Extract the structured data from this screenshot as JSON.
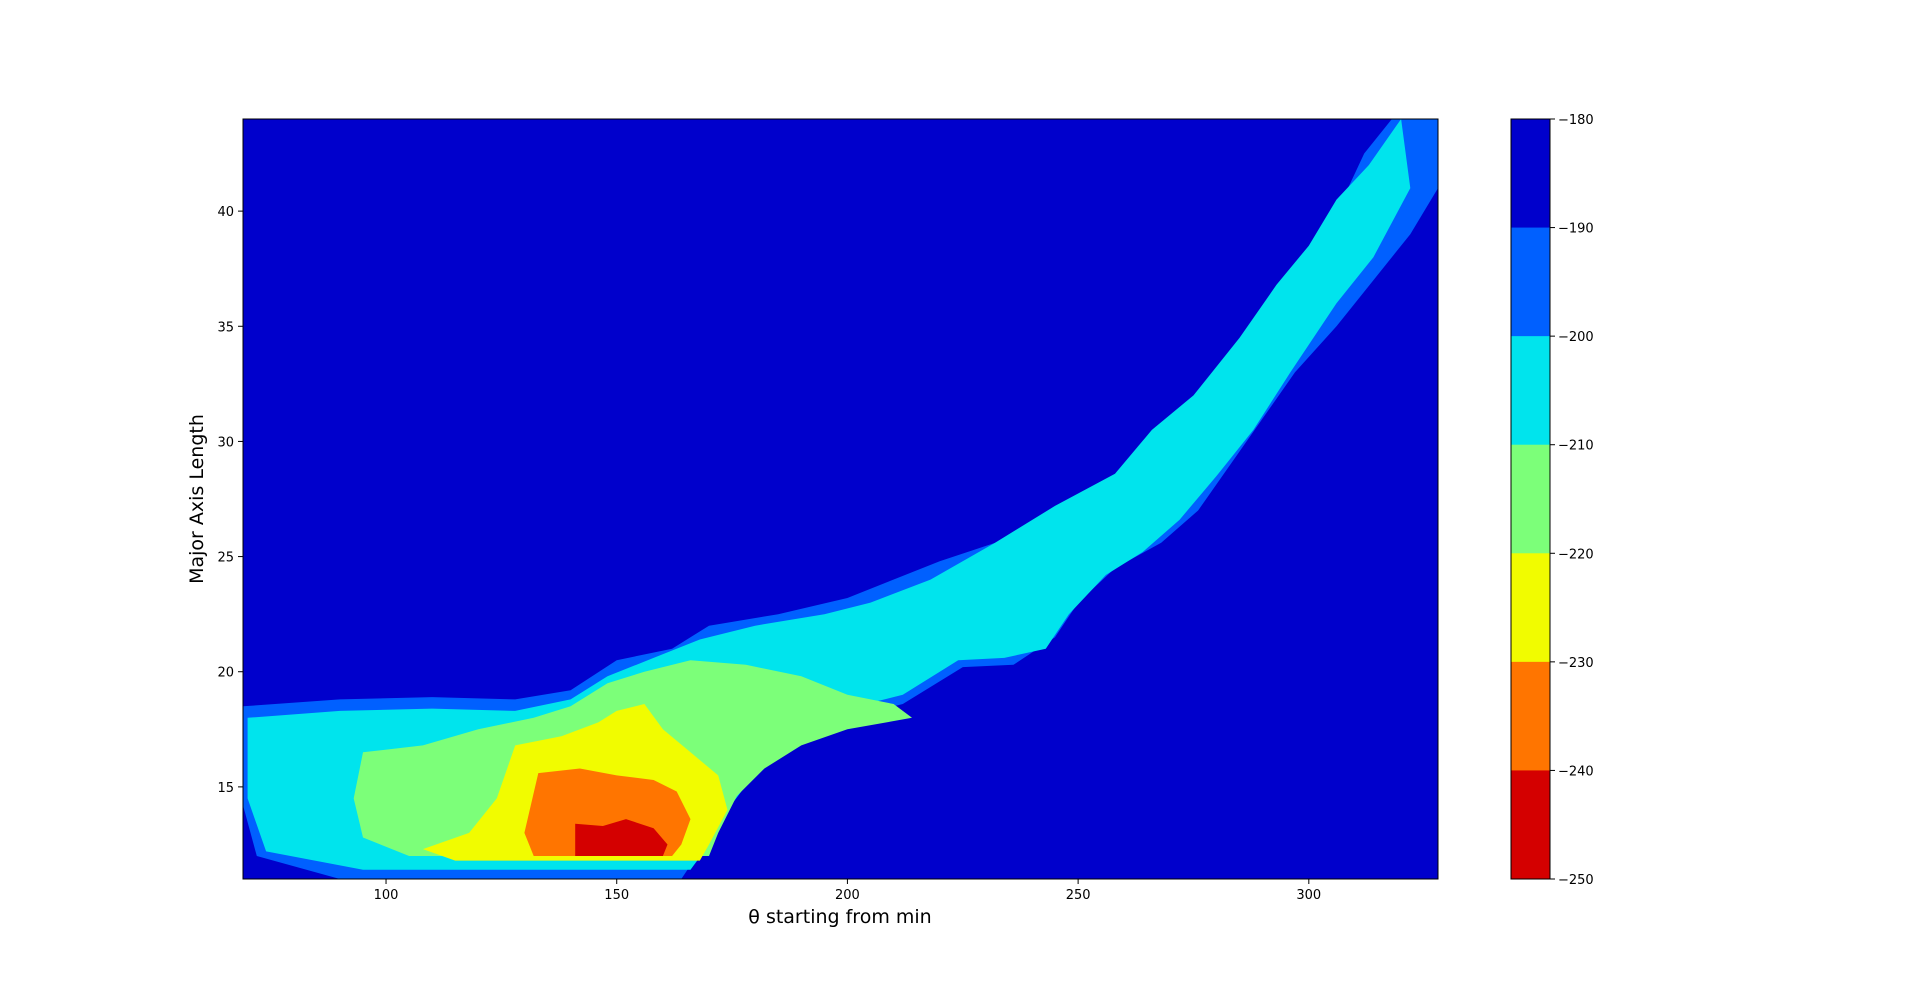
{
  "chart_data": {
    "type": "heatmap",
    "subtype": "filled-contour",
    "title": "",
    "xlabel": "θ starting from min",
    "ylabel": "Major Axis Length",
    "xlim": [
      69,
      328
    ],
    "ylim": [
      11,
      44
    ],
    "xticks": [
      100,
      150,
      200,
      250,
      300
    ],
    "yticks": [
      15,
      20,
      25,
      30,
      35,
      40
    ],
    "grid": false,
    "colorbar": {
      "position": "right",
      "ticks": [
        -180,
        -190,
        -200,
        -210,
        -220,
        -230,
        -240,
        -250
      ],
      "levels": [
        {
          "range": [
            -190,
            -180
          ],
          "color": "#0000cc"
        },
        {
          "range": [
            -200,
            -190
          ],
          "color": "#0060ff"
        },
        {
          "range": [
            -210,
            -200
          ],
          "color": "#00e4ed"
        },
        {
          "range": [
            -220,
            -210
          ],
          "color": "#7cff79"
        },
        {
          "range": [
            -230,
            -220
          ],
          "color": "#f1fc00"
        },
        {
          "range": [
            -240,
            -230
          ],
          "color": "#ff7500"
        },
        {
          "range": [
            -250,
            -240
          ],
          "color": "#d40000"
        }
      ]
    },
    "regions": [
      {
        "level": -190,
        "points": [
          [
            69,
            18.5
          ],
          [
            90,
            18.8
          ],
          [
            110,
            18.9
          ],
          [
            128,
            18.8
          ],
          [
            140,
            19.2
          ],
          [
            150,
            20.5
          ],
          [
            162,
            21
          ],
          [
            170,
            22
          ],
          [
            185,
            22.5
          ],
          [
            200,
            23.2
          ],
          [
            220,
            24.8
          ],
          [
            235,
            25.8
          ],
          [
            250,
            27.5
          ],
          [
            262,
            28.8
          ],
          [
            270,
            30
          ],
          [
            282,
            31.5
          ],
          [
            290,
            33.5
          ],
          [
            297,
            36
          ],
          [
            305,
            39.5
          ],
          [
            312,
            42.5
          ],
          [
            318,
            44
          ],
          [
            328,
            44
          ],
          [
            328,
            41
          ],
          [
            322,
            39
          ],
          [
            314,
            37
          ],
          [
            306,
            35
          ],
          [
            297,
            33
          ],
          [
            290,
            31
          ],
          [
            283,
            29
          ],
          [
            276,
            27
          ],
          [
            268,
            25.6
          ],
          [
            258,
            24.5
          ],
          [
            250,
            23
          ],
          [
            245,
            21.5
          ],
          [
            236,
            20.3
          ],
          [
            225,
            20.2
          ],
          [
            212,
            18.6
          ],
          [
            200,
            18
          ],
          [
            187,
            16.8
          ],
          [
            178,
            15.2
          ],
          [
            172,
            13.8
          ],
          [
            168,
            12.2
          ],
          [
            164,
            11
          ],
          [
            90,
            11
          ],
          [
            72,
            12
          ],
          [
            69,
            14.2
          ]
        ]
      },
      {
        "level": -200,
        "points": [
          [
            70,
            18
          ],
          [
            90,
            18.3
          ],
          [
            110,
            18.4
          ],
          [
            128,
            18.3
          ],
          [
            140,
            18.8
          ],
          [
            148,
            19.8
          ],
          [
            158,
            20.6
          ],
          [
            168,
            21.4
          ],
          [
            180,
            22
          ],
          [
            195,
            22.5
          ],
          [
            205,
            23
          ],
          [
            218,
            24
          ],
          [
            232,
            25.6
          ],
          [
            245,
            27.2
          ],
          [
            258,
            28.6
          ],
          [
            266,
            30.5
          ],
          [
            275,
            32
          ],
          [
            285,
            34.5
          ],
          [
            293,
            36.8
          ],
          [
            300,
            38.5
          ],
          [
            306,
            40.5
          ],
          [
            313,
            42
          ],
          [
            320,
            44
          ],
          [
            322,
            41
          ],
          [
            314,
            38
          ],
          [
            306,
            36
          ],
          [
            296,
            33
          ],
          [
            288,
            30.5
          ],
          [
            280,
            28.5
          ],
          [
            272,
            26.6
          ],
          [
            264,
            25.2
          ],
          [
            256,
            24.2
          ],
          [
            248,
            22.5
          ],
          [
            243,
            21
          ],
          [
            234,
            20.6
          ],
          [
            224,
            20.5
          ],
          [
            212,
            19
          ],
          [
            200,
            18.4
          ],
          [
            188,
            17.2
          ],
          [
            180,
            15.6
          ],
          [
            174,
            14
          ],
          [
            170,
            12.5
          ],
          [
            166,
            11.4
          ],
          [
            95,
            11.4
          ],
          [
            74,
            12.2
          ],
          [
            70,
            14.5
          ]
        ]
      },
      {
        "level": -210,
        "points": [
          [
            95,
            16.5
          ],
          [
            108,
            16.8
          ],
          [
            120,
            17.5
          ],
          [
            132,
            18
          ],
          [
            140,
            18.5
          ],
          [
            148,
            19.5
          ],
          [
            156,
            20
          ],
          [
            166,
            20.5
          ],
          [
            178,
            20.3
          ],
          [
            190,
            19.8
          ],
          [
            200,
            19
          ],
          [
            210,
            18.6
          ],
          [
            214,
            18
          ],
          [
            200,
            17.5
          ],
          [
            190,
            16.8
          ],
          [
            182,
            15.8
          ],
          [
            176,
            14.6
          ],
          [
            172,
            13
          ],
          [
            170,
            12
          ],
          [
            105,
            12
          ],
          [
            95,
            12.8
          ],
          [
            93,
            14.5
          ]
        ]
      },
      {
        "level": -220,
        "points": [
          [
            128,
            16.8
          ],
          [
            138,
            17.2
          ],
          [
            146,
            17.8
          ],
          [
            150,
            18.3
          ],
          [
            156,
            18.6
          ],
          [
            160,
            17.5
          ],
          [
            166,
            16.5
          ],
          [
            172,
            15.5
          ],
          [
            174,
            14
          ],
          [
            170,
            12.5
          ],
          [
            168,
            11.8
          ],
          [
            115,
            11.8
          ],
          [
            108,
            12.3
          ],
          [
            118,
            13
          ],
          [
            124,
            14.5
          ]
        ]
      },
      {
        "level": -230,
        "points": [
          [
            133,
            15.6
          ],
          [
            142,
            15.8
          ],
          [
            150,
            15.5
          ],
          [
            158,
            15.3
          ],
          [
            163,
            14.8
          ],
          [
            166,
            13.6
          ],
          [
            164,
            12.5
          ],
          [
            162,
            12
          ],
          [
            132,
            12
          ],
          [
            130,
            13
          ]
        ]
      },
      {
        "level": -240,
        "points": [
          [
            141,
            13.4
          ],
          [
            147,
            13.3
          ],
          [
            152,
            13.6
          ],
          [
            158,
            13.2
          ],
          [
            161,
            12.5
          ],
          [
            160,
            12
          ],
          [
            141,
            12
          ]
        ]
      }
    ]
  }
}
